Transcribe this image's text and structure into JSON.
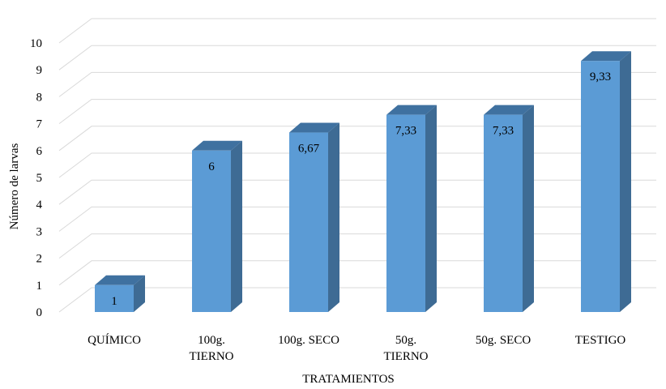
{
  "chart_data": {
    "type": "bar",
    "style": "3d-column",
    "categories": [
      [
        "QUÍMICO"
      ],
      [
        "100g.",
        "TIERNO"
      ],
      [
        "100g. SECO"
      ],
      [
        "50g.",
        "TIERNO"
      ],
      [
        "50g. SECO"
      ],
      [
        "TESTIGO"
      ]
    ],
    "values": [
      1,
      6,
      6.67,
      7.33,
      7.33,
      9.33
    ],
    "data_labels": [
      "1",
      "6",
      "6,67",
      "7,33",
      "7,33",
      "9,33"
    ],
    "title": "",
    "xlabel": "TRATAMIENTOS",
    "ylabel": "Número de larvas",
    "ylim": [
      0,
      10
    ],
    "yticks": [
      "0",
      "1",
      "2",
      "3",
      "4",
      "5",
      "6",
      "7",
      "8",
      "9",
      "10"
    ],
    "grid": true,
    "legend": "none",
    "colors": {
      "bar_front": "#5b9bd5",
      "bar_side": "#3e6b94",
      "bar_top": "#3f71a0",
      "grid": "#d9d9d9"
    }
  }
}
